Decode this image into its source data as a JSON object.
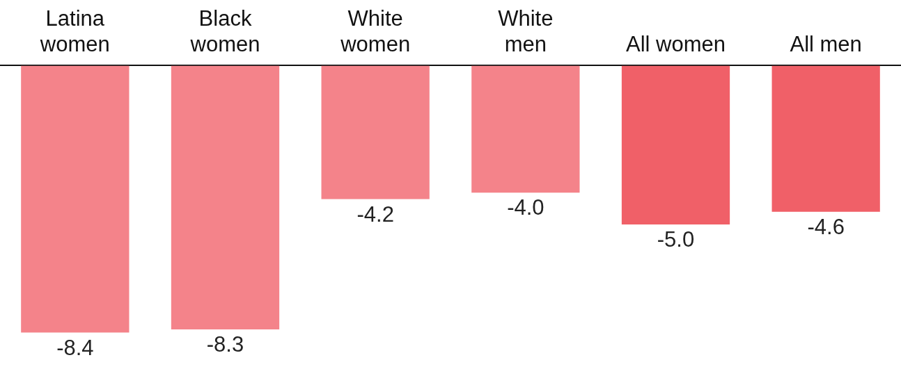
{
  "chart_data": {
    "type": "bar",
    "categories": [
      "Latina\nwomen",
      "Black\nwomen",
      "White\nwomen",
      "White\nmen",
      "All women",
      "All men"
    ],
    "values": [
      -8.4,
      -8.3,
      -4.2,
      -4.0,
      -5.0,
      -4.6
    ],
    "value_labels": [
      "-8.4",
      "-8.3",
      "-4.2",
      "-4.0",
      "-5.0",
      "-4.6"
    ],
    "colors": [
      "#f4838a",
      "#f4838a",
      "#f4838a",
      "#f4838a",
      "#f06068",
      "#f06068"
    ]
  }
}
